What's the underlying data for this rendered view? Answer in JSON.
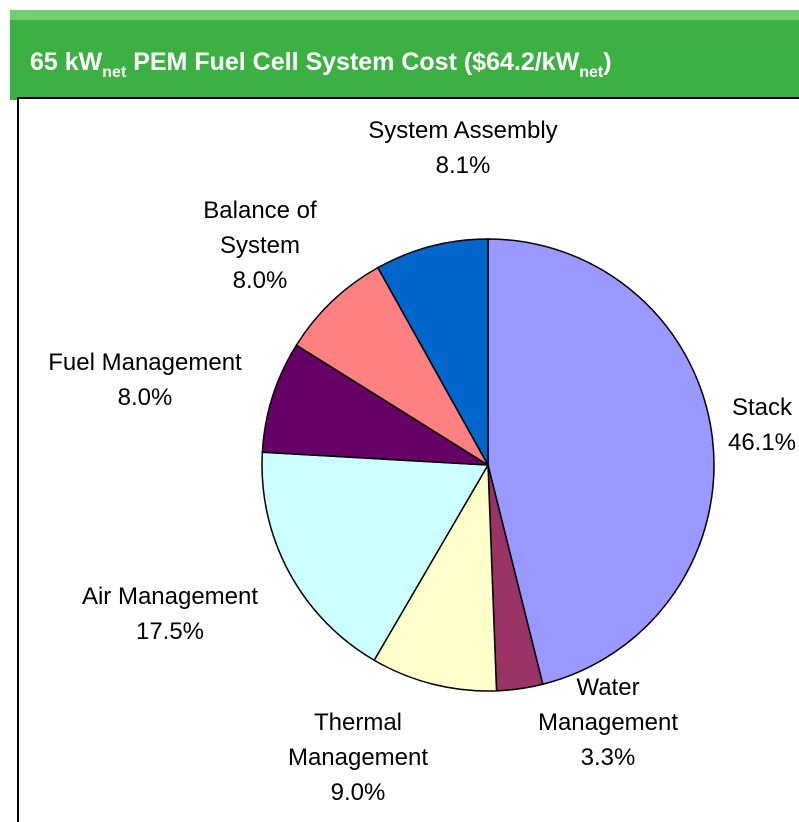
{
  "chart_data": {
    "type": "pie",
    "title": [
      "65 kW",
      "net",
      " PEM Fuel Cell System Cost ($64.2/kW",
      "net",
      ")"
    ],
    "categories": [
      "Stack",
      "Water\nManagement",
      "Thermal\nManagement",
      "Air Management",
      "Fuel Management",
      "Balance of\nSystem",
      "System Assembly"
    ],
    "values": [
      46.1,
      3.3,
      9.0,
      17.5,
      8.0,
      8.0,
      8.1
    ],
    "value_labels": [
      "46.1%",
      "3.3%",
      "9.0%",
      "17.5%",
      "8.0%",
      "8.0%",
      "8.1%"
    ],
    "colors": [
      "#9999ff",
      "#993366",
      "#ffffcc",
      "#ccffff",
      "#660066",
      "#ff8080",
      "#0066cc"
    ]
  }
}
